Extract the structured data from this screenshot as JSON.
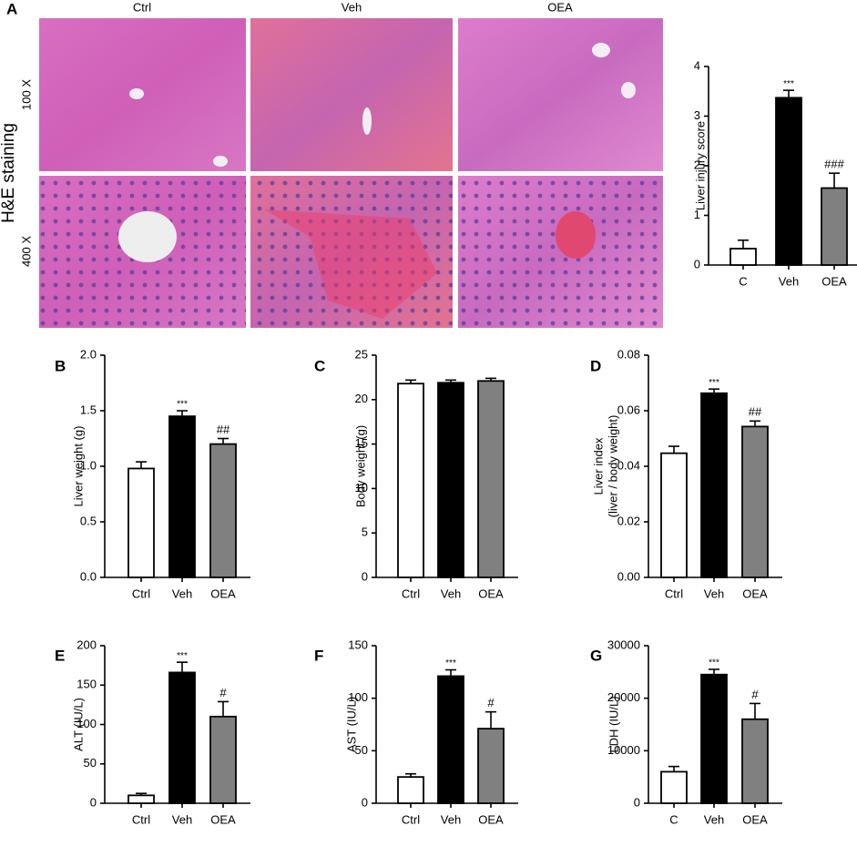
{
  "figure": {
    "panel_labels": [
      "A",
      "B",
      "C",
      "D",
      "E",
      "F",
      "G"
    ],
    "image_columns": [
      "Ctrl",
      "Veh",
      "OEA"
    ],
    "image_rows": [
      "100 X",
      "400 X"
    ],
    "stain_label": "H&E staining"
  },
  "chart_data": [
    {
      "type": "bar",
      "ylabel": "Liver injury score",
      "categories": [
        "C",
        "Veh",
        "OEA"
      ],
      "values": [
        0.33,
        3.37,
        1.55
      ],
      "errors": [
        0.17,
        0.15,
        0.3
      ],
      "annotations": [
        null,
        "***",
        "###"
      ],
      "colors": [
        "#ffffff",
        "#000000",
        "#808080"
      ],
      "ylim": [
        0,
        4
      ],
      "yticks": [
        0,
        1,
        2,
        3,
        4
      ]
    },
    {
      "type": "bar",
      "ylabel": "Liver weight (g)",
      "categories": [
        "Ctrl",
        "Veh",
        "OEA"
      ],
      "values": [
        0.98,
        1.45,
        1.2
      ],
      "errors": [
        0.06,
        0.05,
        0.05
      ],
      "annotations": [
        null,
        "***",
        "##"
      ],
      "colors": [
        "#ffffff",
        "#000000",
        "#808080"
      ],
      "ylim": [
        0,
        2
      ],
      "yticks": [
        {
          "value": 0,
          "label": "0.0"
        },
        0.5,
        {
          "value": 1,
          "label": "1.0"
        },
        1.5,
        {
          "value": 2,
          "label": "2.0"
        }
      ]
    },
    {
      "type": "bar",
      "ylabel": "Body weight (g)",
      "categories": [
        "Ctrl",
        "Veh",
        "OEA"
      ],
      "values": [
        21.8,
        21.9,
        22.1
      ],
      "errors": [
        0.4,
        0.3,
        0.3
      ],
      "colors": [
        "#ffffff",
        "#000000",
        "#808080"
      ],
      "ylim": [
        0,
        25
      ],
      "yticks": [
        0,
        5,
        10,
        15,
        20,
        25
      ]
    },
    {
      "type": "bar",
      "ylabel": [
        "Liver index",
        "(liver / body weight)"
      ],
      "categories": [
        "Ctrl",
        "Veh",
        "OEA"
      ],
      "values": [
        0.0447,
        0.0663,
        0.0543
      ],
      "errors": [
        0.0025,
        0.0015,
        0.002
      ],
      "annotations": [
        null,
        "***",
        "##"
      ],
      "colors": [
        "#ffffff",
        "#000000",
        "#808080"
      ],
      "ylim": [
        0,
        0.08
      ],
      "yticks": [
        {
          "value": 0,
          "label": "0.00"
        },
        {
          "value": 0.02,
          "label": "0.02"
        },
        {
          "value": 0.04,
          "label": "0.04"
        },
        {
          "value": 0.06,
          "label": "0.06"
        },
        {
          "value": 0.08,
          "label": "0.08"
        }
      ]
    },
    {
      "type": "bar",
      "ylabel": "ALT (IU/L)",
      "categories": [
        "Ctrl",
        "Veh",
        "OEA"
      ],
      "values": [
        10,
        166,
        110
      ],
      "errors": [
        2.5,
        13,
        19
      ],
      "annotations": [
        null,
        "***",
        "#"
      ],
      "colors": [
        "#ffffff",
        "#000000",
        "#808080"
      ],
      "ylim": [
        0,
        200
      ],
      "yticks": [
        0,
        50,
        100,
        150,
        200
      ]
    },
    {
      "type": "bar",
      "ylabel": "AST (IU/L)",
      "categories": [
        "Ctrl",
        "Veh",
        "OEA"
      ],
      "values": [
        25,
        121,
        71
      ],
      "errors": [
        3,
        6,
        16
      ],
      "annotations": [
        null,
        "***",
        "#"
      ],
      "colors": [
        "#ffffff",
        "#000000",
        "#808080"
      ],
      "ylim": [
        0,
        150
      ],
      "yticks": [
        0,
        50,
        100,
        150
      ]
    },
    {
      "type": "bar",
      "ylabel": "LDH (IU/L)",
      "categories": [
        "C",
        "Veh",
        "OEA"
      ],
      "values": [
        6000,
        24500,
        16000
      ],
      "errors": [
        1000,
        1000,
        3000
      ],
      "annotations": [
        null,
        "***",
        "#"
      ],
      "colors": [
        "#ffffff",
        "#000000",
        "#808080"
      ],
      "ylim": [
        0,
        30000
      ],
      "yticks": [
        0,
        10000,
        20000,
        30000
      ]
    }
  ]
}
